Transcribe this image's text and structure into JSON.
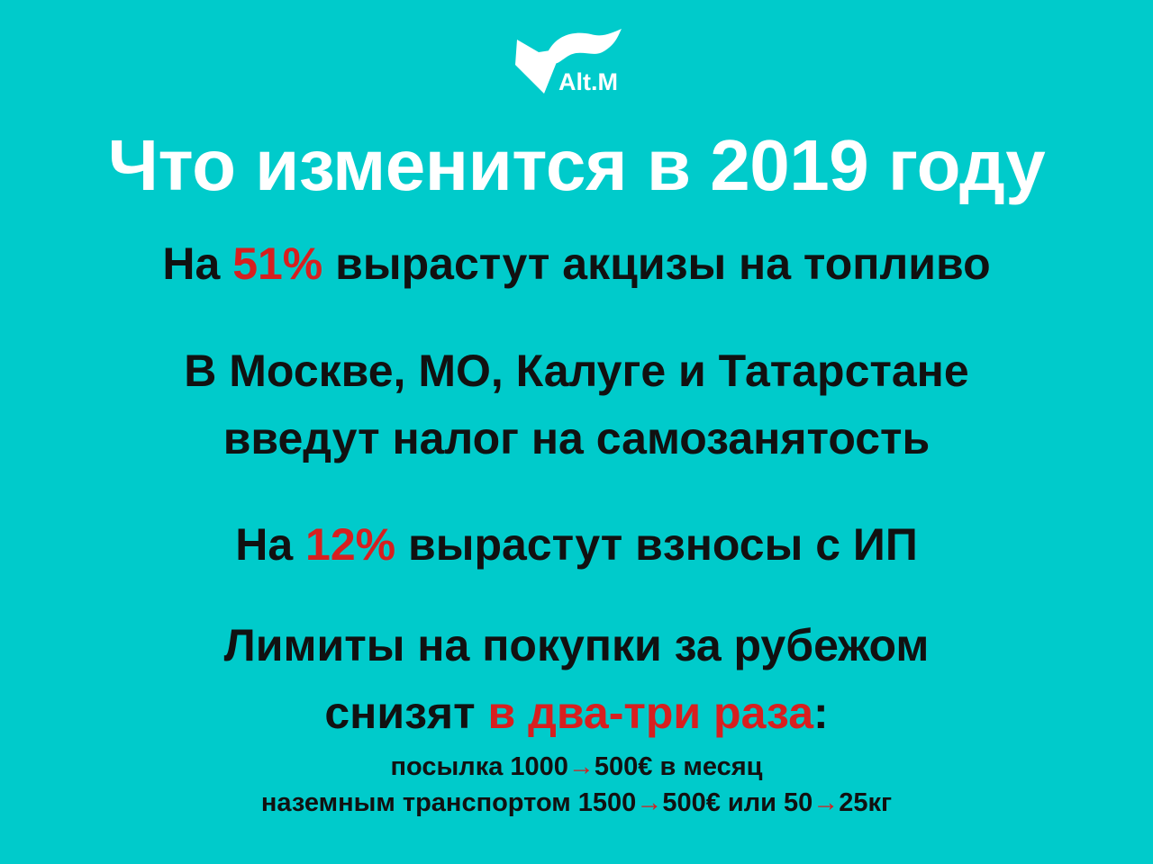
{
  "logo": {
    "text": "Alt.M"
  },
  "title": "Что изменится в 2019 году",
  "items": {
    "fuel": {
      "pre": "На ",
      "hl": "51%",
      "post": " вырастут акцизы на топливо"
    },
    "selfemp": {
      "line1": "В Москве, МО, Калуге и Татарстане",
      "line2": "введут налог на самозанятость"
    },
    "ip": {
      "pre": "На ",
      "hl": "12%",
      "post": " вырастут взносы с ИП"
    },
    "limits": {
      "line1": "Лимиты на покупки за рубежом",
      "line2_pre": "снизят ",
      "line2_hl": "в два-три раза",
      "line2_post": ":",
      "parcel": {
        "a": "посылка 1000",
        "arrow": "→",
        "b": "500€ в месяц"
      },
      "ground": {
        "a": "наземным транспортом 1500",
        "arrow1": "→",
        "b": "500€ или 50",
        "arrow2": "→",
        "c": "25кг"
      }
    }
  },
  "colors": {
    "background": "#00cbcb",
    "accent": "#d81f1f",
    "title": "#ffffff"
  }
}
